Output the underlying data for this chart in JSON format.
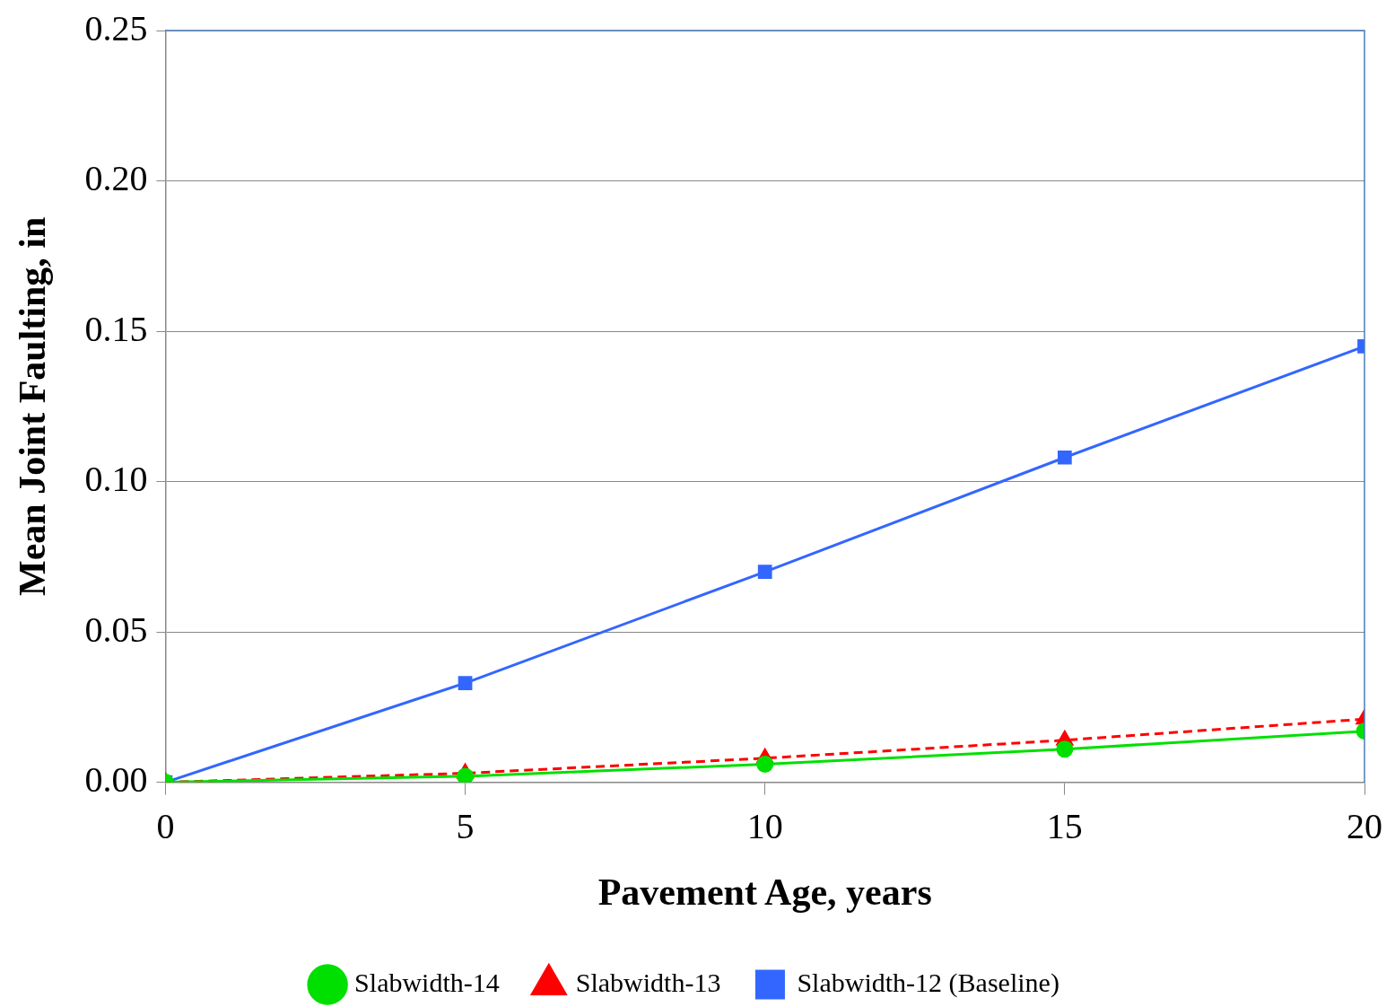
{
  "chart_data": {
    "type": "line",
    "xlabel": "Pavement Age, years",
    "ylabel": "Mean Joint Faulting, in",
    "x": [
      0,
      5,
      10,
      15,
      20
    ],
    "series": [
      {
        "name": "Slabwidth-12 (Baseline)",
        "color": "#3366ff",
        "marker": "square",
        "line_style": "solid",
        "values": [
          0,
          0.033,
          0.07,
          0.108,
          0.145
        ]
      },
      {
        "name": "Slabwidth-13",
        "color": "#ff0000",
        "marker": "triangle",
        "line_style": "dashed",
        "values": [
          0,
          0.003,
          0.008,
          0.014,
          0.021
        ]
      },
      {
        "name": "Slabwidth-14",
        "color": "#00e000",
        "marker": "circle",
        "line_style": "solid",
        "values": [
          0,
          0.002,
          0.006,
          0.011,
          0.017
        ]
      }
    ],
    "xlim": [
      0,
      20
    ],
    "xticks": [
      0,
      5,
      10,
      15,
      20
    ],
    "ylim": [
      0,
      0.25
    ],
    "yticks": [
      {
        "value": 0,
        "label": "0.00"
      },
      {
        "value": 0.05,
        "label": "0.05"
      },
      {
        "value": 0.1,
        "label": "0.10"
      },
      {
        "value": 0.15,
        "label": "0.15"
      },
      {
        "value": 0.2,
        "label": "0.20"
      },
      {
        "value": 0.25,
        "label": "0.25"
      }
    ],
    "grid": "y",
    "legend": "bottom"
  }
}
